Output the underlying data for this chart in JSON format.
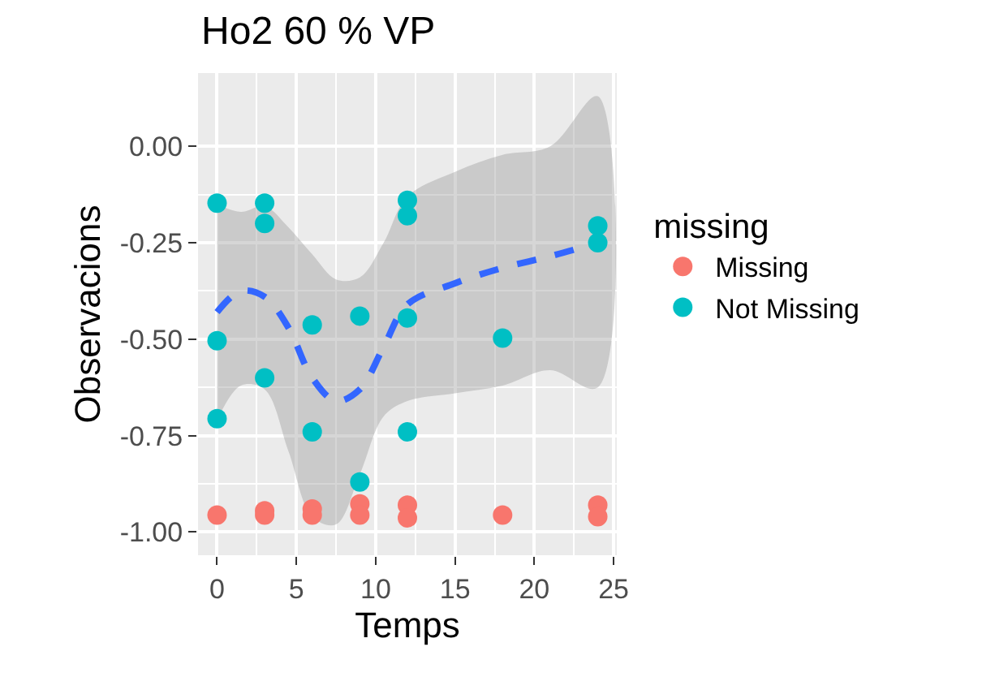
{
  "chart_data": {
    "type": "scatter",
    "title": "Ho2 60 % VP",
    "xlabel": "Temps",
    "ylabel": "Observacions",
    "legend_title": "missing",
    "xlim": [
      -1.2,
      25.2
    ],
    "xticks": [
      0,
      5,
      10,
      15,
      20,
      25
    ],
    "ylim": [
      -1.06,
      0.19
    ],
    "yticks": [
      {
        "value": 0,
        "label": "0.00"
      },
      -0.25,
      {
        "value": -0.5,
        "label": "-0.50"
      },
      -0.75,
      {
        "value": -1,
        "label": "-1.00"
      }
    ],
    "grid": true,
    "legend": "right",
    "marker": "circle",
    "series": [
      {
        "type": "line",
        "marker": "none",
        "line_style": "dashed",
        "color": "#3366ff",
        "x": [
          0,
          1.5,
          3,
          4.5,
          6,
          7.5,
          9,
          10.5,
          12,
          15,
          18,
          21,
          24
        ],
        "values": [
          -0.43,
          -0.375,
          -0.39,
          -0.47,
          -0.6,
          -0.66,
          -0.63,
          -0.52,
          -0.41,
          -0.355,
          -0.315,
          -0.285,
          -0.25
        ],
        "lower": [
          -0.71,
          -0.62,
          -0.63,
          -0.79,
          -0.96,
          -0.98,
          -0.85,
          -0.7,
          -0.66,
          -0.64,
          -0.62,
          -0.58,
          -0.625
        ],
        "upper": [
          -0.15,
          -0.17,
          -0.155,
          -0.21,
          -0.28,
          -0.345,
          -0.34,
          -0.25,
          -0.13,
          -0.066,
          -0.022,
          0.0,
          0.13
        ]
      },
      {
        "name": "Missing",
        "color": "#f8766d",
        "x": [
          0,
          3,
          3,
          6,
          6,
          9,
          9,
          12,
          12,
          18,
          24,
          24
        ],
        "values": [
          -0.956,
          -0.945,
          -0.956,
          -0.94,
          -0.956,
          -0.927,
          -0.956,
          -0.93,
          -0.963,
          -0.956,
          -0.93,
          -0.96
        ]
      },
      {
        "name": "Not Missing",
        "color": "#00bfc4",
        "x": [
          0,
          0,
          0,
          3,
          3,
          3,
          6,
          6,
          9,
          9,
          12,
          12,
          12,
          12,
          18,
          24,
          24
        ],
        "values": [
          -0.147,
          -0.504,
          -0.706,
          -0.147,
          -0.2,
          -0.6,
          -0.463,
          -0.74,
          -0.44,
          -0.87,
          -0.14,
          -0.18,
          -0.445,
          -0.74,
          -0.497,
          -0.206,
          -0.25
        ]
      }
    ]
  }
}
